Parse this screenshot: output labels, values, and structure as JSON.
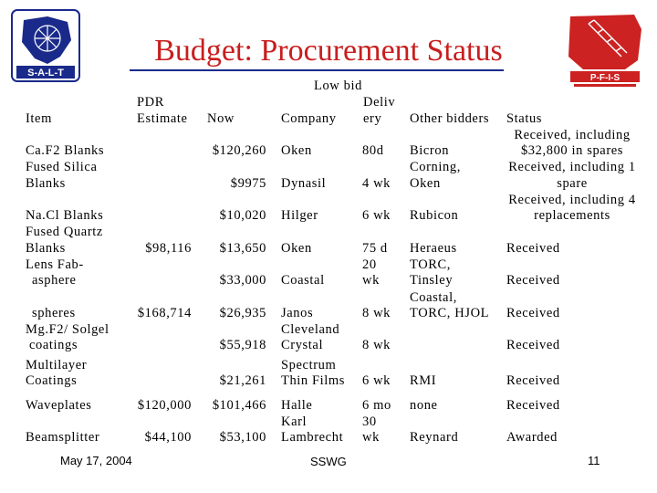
{
  "title": "Budget: Procurement Status",
  "logos": {
    "left": {
      "text": "S-A-L-T",
      "color": "#1a2a8a"
    },
    "right": {
      "text": "P-F-I-S",
      "color": "#cc2222"
    }
  },
  "headers": {
    "item": "Item",
    "pdr_line1": "PDR",
    "pdr_line2": "Estimate",
    "now": "Now",
    "lowbid": "Low bid",
    "company": "Company",
    "deliv_line1": "Deliv",
    "deliv_line2": "ery",
    "other": "Other bidders",
    "status": "Status"
  },
  "items": {
    "caf2": "Ca.F2 Blanks",
    "fused_silica_1": "Fused Silica",
    "fused_silica_2": "Blanks",
    "nacl": "Na.Cl Blanks",
    "fused_quartz_1": "Fused Quartz",
    "fused_quartz_2": "Blanks",
    "lens_fab_1": "Lens Fab-",
    "lens_fab_2": "asphere",
    "spheres": "spheres",
    "mgf2_1": "Mg.F2/ Solgel",
    "mgf2_2": "coatings",
    "multilayer_1": "Multilayer",
    "multilayer_2": "Coatings",
    "waveplates": "Waveplates",
    "beamsplitter": "Beamsplitter"
  },
  "pdr": {
    "v1": "$98,116",
    "v2": "$168,714",
    "v3": "$120,000",
    "v4": "$44,100"
  },
  "now": {
    "v1": "$120,260",
    "v2": "$9975",
    "v3": "$10,020",
    "v4": "$13,650",
    "v5": "$33,000",
    "v6": "$26,935",
    "v7": "$55,918",
    "v8": "$21,261",
    "v9": "$101,466",
    "v10": "$53,100"
  },
  "company": {
    "c1": "Oken",
    "c2": "Dynasil",
    "c3": "Hilger",
    "c4": "Oken",
    "c5": "Coastal",
    "c6": "Janos",
    "c7a": "Cleveland",
    "c7b": "Crystal",
    "c8a": "Spectrum",
    "c8b": "Thin Films",
    "c9": "Halle",
    "c10a": "Karl",
    "c10b": "Lambrecht"
  },
  "delivery": {
    "d1": "80d",
    "d2": "4 wk",
    "d3": "6 wk",
    "d4a": "75 d",
    "d4b": "20",
    "d4c": "wk",
    "d6": "8 wk",
    "d7": "8 wk",
    "d8": "6 wk",
    "d9a": "6 mo",
    "d9b": "30",
    "d9c": "wk"
  },
  "other": {
    "o1": "Bicron",
    "o2a": "Corning,",
    "o2b": "Oken",
    "o3": "Rubicon",
    "o4a": "Heraeus",
    "o4b": "TORC,",
    "o4c": "Tinsley",
    "o4d": "Coastal,",
    "o4e": "TORC, HJOL",
    "o8": "RMI",
    "o9": "none",
    "o10": "Reynard"
  },
  "status": {
    "s1a": "Received, including",
    "s1b": "$32,800 in spares",
    "s2a": "Received, including 1",
    "s2b": "spare",
    "s3a": "Received, including 4",
    "s3b": "replacements",
    "s4": "Received",
    "s5": "Received",
    "s6": "Received",
    "s7": "Received",
    "s8": "Received",
    "s9": "Received",
    "s10": "Awarded"
  },
  "footer": {
    "date": "May 17, 2004",
    "center": "SSWG",
    "page": "11"
  }
}
